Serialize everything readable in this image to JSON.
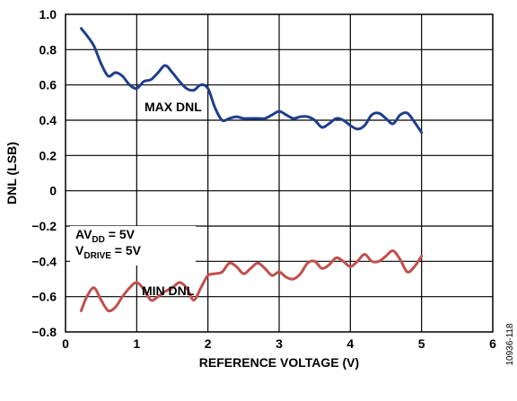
{
  "chart_data": {
    "type": "line",
    "title": "",
    "xlabel": "REFERENCE VOLTAGE (V)",
    "ylabel": "DNL (LSB)",
    "xlim": [
      0,
      6
    ],
    "ylim": [
      -0.8,
      1.0
    ],
    "grid": true,
    "x_ticks": [
      "0",
      "1",
      "2",
      "3",
      "4",
      "5",
      "6"
    ],
    "y_ticks": [
      "1.0",
      "0.8",
      "0.6",
      "0.4",
      "0.2",
      "0",
      "−0.2",
      "−0.4",
      "−0.6",
      "−0.8"
    ],
    "series": [
      {
        "name": "MAX DNL",
        "color": "#1f3f8c",
        "x": [
          0.22,
          0.3,
          0.4,
          0.5,
          0.6,
          0.7,
          0.8,
          0.9,
          1.0,
          1.1,
          1.2,
          1.3,
          1.4,
          1.5,
          1.6,
          1.7,
          1.8,
          1.9,
          2.0,
          2.1,
          2.2,
          2.3,
          2.4,
          2.5,
          2.6,
          2.7,
          2.8,
          2.9,
          3.0,
          3.1,
          3.2,
          3.3,
          3.4,
          3.5,
          3.6,
          3.7,
          3.8,
          3.9,
          4.0,
          4.1,
          4.2,
          4.3,
          4.4,
          4.5,
          4.6,
          4.7,
          4.8,
          4.9,
          5.0
        ],
        "y": [
          0.92,
          0.88,
          0.82,
          0.72,
          0.65,
          0.67,
          0.65,
          0.6,
          0.58,
          0.62,
          0.63,
          0.67,
          0.71,
          0.67,
          0.62,
          0.58,
          0.57,
          0.6,
          0.58,
          0.47,
          0.4,
          0.41,
          0.42,
          0.41,
          0.41,
          0.41,
          0.41,
          0.43,
          0.45,
          0.43,
          0.41,
          0.42,
          0.42,
          0.4,
          0.36,
          0.38,
          0.41,
          0.4,
          0.37,
          0.35,
          0.37,
          0.43,
          0.44,
          0.41,
          0.38,
          0.43,
          0.44,
          0.39,
          0.33
        ]
      },
      {
        "name": "MIN DNL",
        "color": "#c0504d",
        "x": [
          0.22,
          0.3,
          0.4,
          0.5,
          0.6,
          0.7,
          0.8,
          0.9,
          1.0,
          1.1,
          1.2,
          1.3,
          1.4,
          1.5,
          1.6,
          1.7,
          1.8,
          1.9,
          2.0,
          2.1,
          2.2,
          2.3,
          2.4,
          2.5,
          2.6,
          2.7,
          2.8,
          2.9,
          3.0,
          3.1,
          3.2,
          3.3,
          3.4,
          3.5,
          3.6,
          3.7,
          3.8,
          3.9,
          4.0,
          4.1,
          4.2,
          4.3,
          4.4,
          4.5,
          4.6,
          4.7,
          4.8,
          4.9,
          5.0
        ],
        "y": [
          -0.68,
          -0.6,
          -0.55,
          -0.62,
          -0.68,
          -0.66,
          -0.6,
          -0.55,
          -0.52,
          -0.56,
          -0.62,
          -0.6,
          -0.57,
          -0.55,
          -0.52,
          -0.55,
          -0.62,
          -0.55,
          -0.48,
          -0.47,
          -0.46,
          -0.41,
          -0.43,
          -0.47,
          -0.44,
          -0.41,
          -0.44,
          -0.48,
          -0.46,
          -0.49,
          -0.5,
          -0.47,
          -0.41,
          -0.4,
          -0.44,
          -0.42,
          -0.38,
          -0.4,
          -0.43,
          -0.4,
          -0.36,
          -0.4,
          -0.4,
          -0.37,
          -0.34,
          -0.39,
          -0.46,
          -0.43,
          -0.37
        ]
      }
    ],
    "annotations": {
      "max_label": "MAX DNL",
      "min_label": "MIN DNL",
      "cond1_main": "AV",
      "cond1_sub": "DD",
      "cond1_rest": " = 5V",
      "cond2_main": "V",
      "cond2_sub": "DRIVE",
      "cond2_rest": " = 5V"
    },
    "figure_id": "10936-118"
  }
}
